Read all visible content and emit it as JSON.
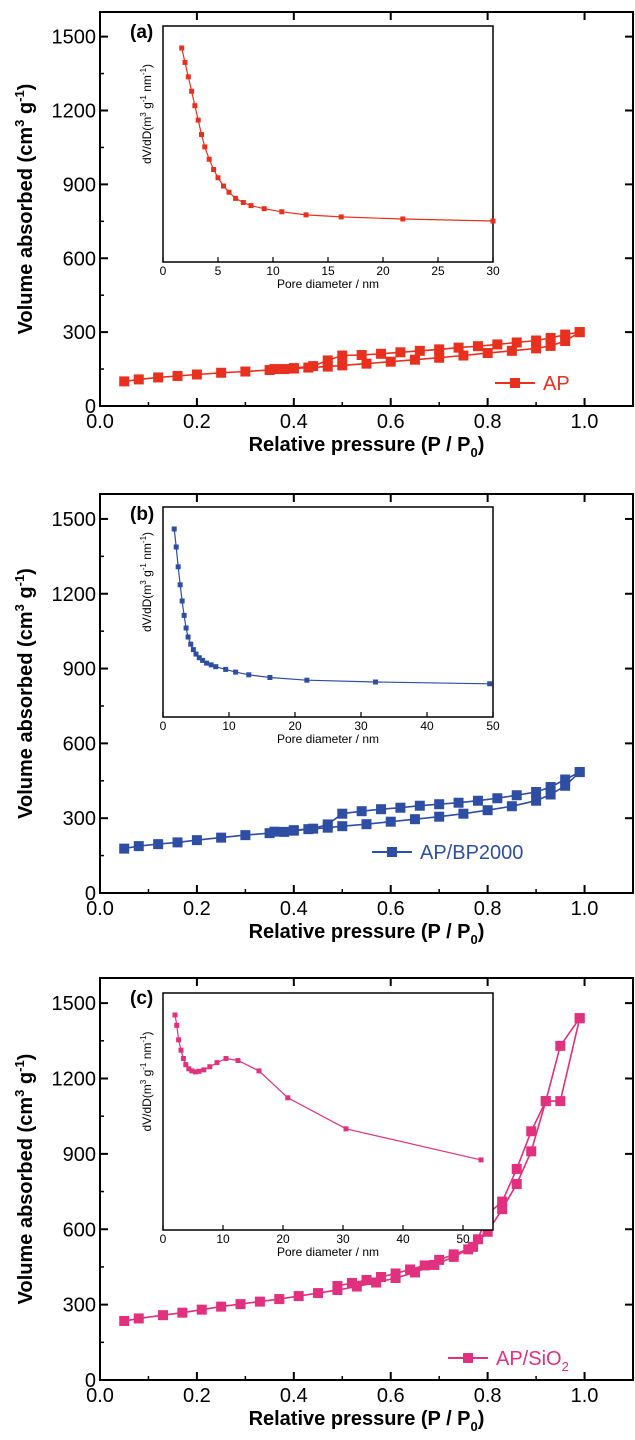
{
  "chart_data": [
    {
      "type": "line",
      "panel_label": "(a)",
      "xlabel": "Relative pressure (P / P",
      "xlabel_sub": "0",
      "xlabel_end": ")",
      "ylabel": "Volume absorbed (cm",
      "ylabel_sup1": "3",
      "ylabel_mid": " g",
      "ylabel_sup2": "-1",
      "ylabel_end": ")",
      "xlim": [
        0.0,
        1.1
      ],
      "ylim": [
        0,
        1600
      ],
      "xticks": [
        0.0,
        0.2,
        0.4,
        0.6,
        0.8,
        1.0
      ],
      "xtick_labels": [
        "0.0",
        "0.2",
        "0.4",
        "0.6",
        "0.8",
        "1.0"
      ],
      "yticks": [
        0,
        300,
        600,
        900,
        1200,
        1500
      ],
      "ytick_labels": [
        "0",
        "300",
        "600",
        "900",
        "1200",
        "1500"
      ],
      "color": "#e8301e",
      "legend": {
        "label": "AP",
        "sub": "",
        "position": "bottom-right"
      },
      "series": [
        {
          "name": "AP",
          "adsorption": {
            "x": [
              0.05,
              0.08,
              0.12,
              0.16,
              0.2,
              0.25,
              0.3,
              0.35,
              0.38,
              0.4,
              0.43,
              0.47,
              0.5,
              0.55,
              0.6,
              0.65,
              0.7,
              0.75,
              0.8,
              0.85,
              0.9,
              0.93,
              0.96,
              0.99
            ],
            "y": [
              100,
              108,
              116,
              122,
              128,
              135,
              140,
              146,
              150,
              152,
              156,
              160,
              165,
              172,
              180,
              188,
              196,
              205,
              215,
              224,
              234,
              244,
              264,
              300
            ]
          },
          "desorption": {
            "x": [
              0.99,
              0.96,
              0.93,
              0.9,
              0.86,
              0.82,
              0.78,
              0.74,
              0.7,
              0.66,
              0.62,
              0.58,
              0.54,
              0.5,
              0.47,
              0.44,
              0.4,
              0.36
            ],
            "y": [
              300,
              290,
              276,
              266,
              258,
              250,
              243,
              237,
              230,
              224,
              218,
              212,
              207,
              205,
              185,
              162,
              154,
              150
            ]
          }
        }
      ],
      "inset": {
        "xlabel": "Pore diameter / nm",
        "ylabel": "dV/dD(m",
        "ylabel_sup1": "3",
        "ylabel_mid": " g",
        "ylabel_sup2": "-1",
        "ylabel_mid2": " nm",
        "ylabel_sup3": "-1",
        "ylabel_end": ")",
        "xlim": [
          0,
          30
        ],
        "ylim": [
          0,
          1
        ],
        "xticks": [
          0,
          5,
          10,
          15,
          20,
          25,
          30
        ],
        "xtick_labels": [
          "0",
          "5",
          "10",
          "15",
          "20",
          "25",
          "30"
        ],
        "x": [
          1.7,
          2.0,
          2.3,
          2.6,
          2.9,
          3.2,
          3.5,
          3.8,
          4.2,
          4.6,
          5.0,
          5.5,
          6.0,
          6.6,
          7.3,
          8.0,
          9.2,
          10.8,
          13.0,
          16.2,
          21.8,
          30.0
        ],
        "y": [
          1.0,
          0.93,
          0.86,
          0.79,
          0.72,
          0.65,
          0.58,
          0.52,
          0.46,
          0.41,
          0.37,
          0.33,
          0.3,
          0.27,
          0.25,
          0.235,
          0.22,
          0.205,
          0.19,
          0.18,
          0.17,
          0.16
        ]
      }
    },
    {
      "type": "line",
      "panel_label": "(b)",
      "xlabel": "Relative pressure (P / P",
      "xlabel_sub": "0",
      "xlabel_end": ")",
      "ylabel": "Volume absorbed (cm",
      "ylabel_sup1": "3",
      "ylabel_mid": " g",
      "ylabel_sup2": "-1",
      "ylabel_end": ")",
      "xlim": [
        0.0,
        1.1
      ],
      "ylim": [
        0,
        1600
      ],
      "xticks": [
        0.0,
        0.2,
        0.4,
        0.6,
        0.8,
        1.0
      ],
      "xtick_labels": [
        "0.0",
        "0.2",
        "0.4",
        "0.6",
        "0.8",
        "1.0"
      ],
      "yticks": [
        0,
        300,
        600,
        900,
        1200,
        1500
      ],
      "ytick_labels": [
        "0",
        "300",
        "600",
        "900",
        "1200",
        "1500"
      ],
      "color": "#2e4ea3",
      "legend": {
        "label": "AP/BP2000",
        "sub": "",
        "position": "bottom-right"
      },
      "series": [
        {
          "name": "AP/BP2000",
          "adsorption": {
            "x": [
              0.05,
              0.08,
              0.12,
              0.16,
              0.2,
              0.25,
              0.3,
              0.35,
              0.38,
              0.4,
              0.43,
              0.47,
              0.5,
              0.55,
              0.6,
              0.65,
              0.7,
              0.75,
              0.8,
              0.85,
              0.9,
              0.93,
              0.96,
              0.99
            ],
            "y": [
              178,
              188,
              196,
              203,
              212,
              222,
              232,
              240,
              245,
              250,
              256,
              262,
              268,
              276,
              286,
              296,
              306,
              318,
              332,
              348,
              370,
              395,
              430,
              485
            ]
          },
          "desorption": {
            "x": [
              0.99,
              0.96,
              0.93,
              0.9,
              0.86,
              0.82,
              0.78,
              0.74,
              0.7,
              0.66,
              0.62,
              0.58,
              0.54,
              0.5,
              0.47,
              0.44,
              0.4,
              0.36
            ],
            "y": [
              485,
              455,
              425,
              405,
              392,
              380,
              370,
              362,
              356,
              350,
              342,
              336,
              328,
              318,
              275,
              258,
              252,
              246
            ]
          }
        }
      ],
      "inset": {
        "xlabel": "Pore diameter / nm",
        "ylabel": "dV/dD(m",
        "ylabel_sup1": "3",
        "ylabel_mid": " g",
        "ylabel_sup2": "-1",
        "ylabel_mid2": " nm",
        "ylabel_sup3": "-1",
        "ylabel_end": ")",
        "xlim": [
          0,
          50
        ],
        "ylim": [
          0,
          1
        ],
        "xticks": [
          0,
          10,
          20,
          30,
          40,
          50
        ],
        "xtick_labels": [
          "0",
          "10",
          "20",
          "30",
          "40",
          "50"
        ],
        "x": [
          1.7,
          2.0,
          2.3,
          2.6,
          2.9,
          3.2,
          3.5,
          3.8,
          4.2,
          4.6,
          5.0,
          5.5,
          6.0,
          6.6,
          7.3,
          8.0,
          9.5,
          11.0,
          13.0,
          16.2,
          21.8,
          32.2,
          49.5
        ],
        "y": [
          1.0,
          0.9,
          0.79,
          0.69,
          0.6,
          0.52,
          0.45,
          0.4,
          0.36,
          0.33,
          0.305,
          0.285,
          0.27,
          0.255,
          0.245,
          0.235,
          0.22,
          0.205,
          0.19,
          0.175,
          0.16,
          0.15,
          0.14
        ]
      }
    },
    {
      "type": "line",
      "panel_label": "(c)",
      "xlabel": "Relative pressure (P / P",
      "xlabel_sub": "0",
      "xlabel_end": ")",
      "ylabel": "Volume absorbed (cm",
      "ylabel_sup1": "3",
      "ylabel_mid": " g",
      "ylabel_sup2": "-1",
      "ylabel_end": ")",
      "xlim": [
        0.0,
        1.1
      ],
      "ylim": [
        0,
        1600
      ],
      "xticks": [
        0.0,
        0.2,
        0.4,
        0.6,
        0.8,
        1.0
      ],
      "xtick_labels": [
        "0.0",
        "0.2",
        "0.4",
        "0.6",
        "0.8",
        "1.0"
      ],
      "yticks": [
        0,
        300,
        600,
        900,
        1200,
        1500
      ],
      "ytick_labels": [
        "0",
        "300",
        "600",
        "900",
        "1200",
        "1500"
      ],
      "color": "#e0307e",
      "legend": {
        "label": "AP/SiO",
        "sub": "2",
        "position": "bottom-right"
      },
      "series": [
        {
          "name": "AP/SiO2",
          "adsorption": {
            "x": [
              0.05,
              0.08,
              0.13,
              0.17,
              0.21,
              0.25,
              0.29,
              0.33,
              0.37,
              0.41,
              0.45,
              0.49,
              0.53,
              0.57,
              0.61,
              0.65,
              0.69,
              0.73,
              0.77,
              0.8,
              0.83,
              0.86,
              0.89,
              0.92,
              0.95,
              0.99
            ],
            "y": [
              235,
              245,
              258,
              268,
              280,
              292,
              302,
              312,
              322,
              334,
              346,
              358,
              372,
              388,
              406,
              428,
              458,
              490,
              530,
              590,
              680,
              780,
              910,
              1110,
              1330,
              1440
            ]
          },
          "desorption": {
            "x": [
              0.99,
              0.95,
              0.92,
              0.89,
              0.86,
              0.83,
              0.8,
              0.78,
              0.76,
              0.73,
              0.7,
              0.67,
              0.64,
              0.61,
              0.58,
              0.55,
              0.52,
              0.49
            ],
            "y": [
              1440,
              1110,
              1110,
              990,
              840,
              710,
              660,
              560,
              520,
              500,
              478,
              456,
              440,
              424,
              410,
              398,
              386,
              374
            ]
          }
        }
      ],
      "inset": {
        "xlabel": "Pore diameter / nm",
        "ylabel": "dV/dD(m",
        "ylabel_sup1": "3",
        "ylabel_mid": " g",
        "ylabel_sup2": "-1",
        "ylabel_mid2": " nm",
        "ylabel_sup3": "-1",
        "ylabel_end": ")",
        "xlim": [
          0,
          55
        ],
        "ylim": [
          0,
          1
        ],
        "xticks": [
          0,
          10,
          20,
          30,
          40,
          50
        ],
        "xtick_labels": [
          "0",
          "10",
          "20",
          "30",
          "40",
          "50"
        ],
        "x": [
          2.0,
          2.3,
          2.6,
          3.0,
          3.4,
          3.8,
          4.3,
          4.8,
          5.4,
          6.0,
          6.8,
          7.8,
          9.0,
          10.5,
          12.5,
          16.0,
          20.8,
          30.5,
          53.0
        ],
        "y": [
          1.0,
          0.95,
          0.88,
          0.83,
          0.79,
          0.76,
          0.74,
          0.73,
          0.725,
          0.728,
          0.735,
          0.75,
          0.77,
          0.79,
          0.78,
          0.73,
          0.6,
          0.45,
          0.3
        ]
      }
    }
  ]
}
